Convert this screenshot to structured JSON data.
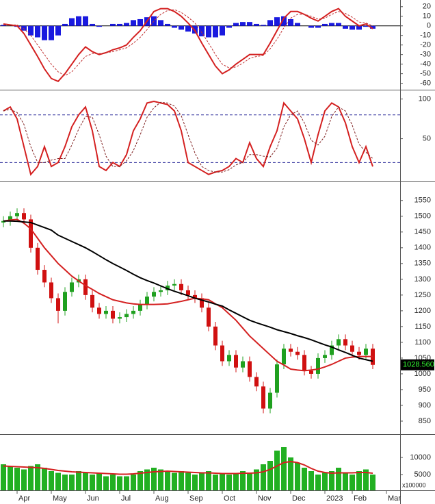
{
  "chart_data": [
    {
      "type": "macd",
      "ylim": [
        -66,
        27
      ],
      "yticks": [
        20,
        10,
        0,
        -10,
        -20,
        -30,
        -40,
        -50,
        -60
      ],
      "histogram": {
        "color": "#1a1adf",
        "values": [
          1,
          0,
          -1,
          -5,
          -10,
          -12,
          -15,
          -15,
          -10,
          2,
          8,
          10,
          10,
          2,
          -1,
          0,
          2,
          2,
          3,
          6,
          7,
          9,
          10,
          6,
          2,
          -2,
          -4,
          -6,
          -8,
          -11,
          -12,
          -12,
          -10,
          -2,
          3,
          4,
          4,
          2,
          1,
          6,
          9,
          10,
          7,
          3,
          0,
          -2,
          -2,
          2,
          3,
          3,
          -3,
          -4,
          -4,
          -1,
          -3
        ]
      },
      "series": [
        {
          "color": "#d42020",
          "values": [
            2,
            1,
            0,
            -8,
            -20,
            -32,
            -45,
            -55,
            -58,
            -50,
            -40,
            -30,
            -22,
            -27,
            -30,
            -28,
            -25,
            -23,
            -20,
            -12,
            -5,
            5,
            15,
            18,
            18,
            15,
            10,
            3,
            -5,
            -18,
            -30,
            -42,
            -50,
            -46,
            -40,
            -35,
            -30,
            -30,
            -30,
            -18,
            -5,
            8,
            15,
            15,
            12,
            8,
            5,
            10,
            15,
            18,
            10,
            5,
            0,
            2,
            -3
          ]
        },
        {
          "color": "#c03030",
          "dashed": true,
          "values": [
            1,
            1,
            1,
            -3,
            -10,
            -20,
            -30,
            -40,
            -48,
            -52,
            -48,
            -40,
            -32,
            -29,
            -29,
            -28,
            -27,
            -25,
            -23,
            -18,
            -12,
            -4,
            5,
            12,
            16,
            17,
            14,
            9,
            3,
            -7,
            -18,
            -30,
            -40,
            -44,
            -43,
            -39,
            -34,
            -32,
            -31,
            -24,
            -14,
            -2,
            8,
            12,
            12,
            10,
            7,
            8,
            12,
            15,
            13,
            9,
            4,
            3,
            0
          ]
        }
      ]
    },
    {
      "type": "line",
      "ylim": [
        -3,
        110
      ],
      "yticks": [
        100,
        50
      ],
      "ref_lines": [
        80,
        20
      ],
      "ref_color": "#2a2a9a",
      "series": [
        {
          "color": "#d42020",
          "values": [
            85,
            90,
            75,
            40,
            5,
            15,
            40,
            15,
            20,
            40,
            65,
            80,
            90,
            60,
            15,
            10,
            20,
            15,
            30,
            60,
            75,
            95,
            97,
            95,
            93,
            85,
            60,
            20,
            15,
            10,
            5,
            8,
            10,
            15,
            25,
            20,
            45,
            25,
            15,
            40,
            60,
            95,
            85,
            75,
            50,
            20,
            55,
            85,
            95,
            90,
            70,
            40,
            20,
            40,
            15
          ]
        },
        {
          "color": "#802020",
          "dashed": true,
          "values": [
            85,
            87,
            83,
            68,
            40,
            20,
            20,
            23,
            25,
            25,
            42,
            62,
            78,
            77,
            55,
            28,
            15,
            15,
            22,
            35,
            55,
            77,
            89,
            96,
            95,
            91,
            79,
            55,
            32,
            15,
            10,
            8,
            8,
            11,
            17,
            20,
            30,
            30,
            28,
            27,
            38,
            65,
            80,
            85,
            70,
            48,
            42,
            53,
            78,
            90,
            85,
            67,
            43,
            33,
            25
          ]
        }
      ]
    },
    {
      "type": "candlestick",
      "ylim": [
        813,
        1606
      ],
      "yticks": [
        850,
        900,
        950,
        1000,
        1050,
        1100,
        1150,
        1200,
        1250,
        1300,
        1350,
        1400,
        1450,
        1500,
        1550
      ],
      "up_color": "#1fa01f",
      "down_color": "#d01010",
      "open": [
        1480,
        1485,
        1500,
        1510,
        1490,
        1400,
        1330,
        1290,
        1240,
        1200,
        1260,
        1290,
        1300,
        1250,
        1210,
        1190,
        1200,
        1175,
        1180,
        1190,
        1200,
        1220,
        1245,
        1260,
        1265,
        1280,
        1285,
        1265,
        1250,
        1240,
        1210,
        1150,
        1090,
        1040,
        1060,
        1020,
        1040,
        990,
        960,
        890,
        940,
        1030,
        1080,
        1070,
        1060,
        1010,
        1000,
        1050,
        1060,
        1090,
        1110,
        1090,
        1070,
        1060,
        1080
      ],
      "high": [
        1500,
        1515,
        1525,
        1525,
        1505,
        1415,
        1345,
        1305,
        1255,
        1275,
        1305,
        1315,
        1315,
        1265,
        1225,
        1215,
        1215,
        1195,
        1205,
        1215,
        1235,
        1260,
        1275,
        1280,
        1295,
        1300,
        1300,
        1280,
        1265,
        1255,
        1225,
        1165,
        1105,
        1075,
        1075,
        1055,
        1055,
        1005,
        975,
        955,
        1045,
        1095,
        1095,
        1085,
        1075,
        1025,
        1065,
        1075,
        1105,
        1125,
        1125,
        1105,
        1085,
        1095,
        1095
      ],
      "low": [
        1465,
        1470,
        1485,
        1475,
        1385,
        1315,
        1275,
        1225,
        1160,
        1185,
        1245,
        1275,
        1235,
        1195,
        1175,
        1175,
        1160,
        1160,
        1165,
        1175,
        1185,
        1205,
        1230,
        1245,
        1250,
        1265,
        1250,
        1235,
        1225,
        1195,
        1135,
        1075,
        1025,
        1025,
        1005,
        1005,
        975,
        945,
        875,
        875,
        925,
        1015,
        1055,
        1045,
        995,
        985,
        985,
        1035,
        1045,
        1075,
        1075,
        1055,
        1045,
        1045,
        1015
      ],
      "close": [
        1485,
        1500,
        1510,
        1490,
        1400,
        1330,
        1290,
        1240,
        1200,
        1260,
        1290,
        1300,
        1250,
        1210,
        1190,
        1200,
        1175,
        1180,
        1190,
        1200,
        1220,
        1245,
        1260,
        1265,
        1280,
        1285,
        1265,
        1250,
        1240,
        1210,
        1150,
        1090,
        1040,
        1060,
        1020,
        1040,
        990,
        960,
        890,
        940,
        1030,
        1080,
        1070,
        1060,
        1010,
        1000,
        1050,
        1060,
        1090,
        1110,
        1090,
        1070,
        1060,
        1080,
        1028.56
      ],
      "last_price": {
        "value": 1028.56,
        "label": "1028.560"
      },
      "series": [
        {
          "color": "#d42020",
          "values": [
            1485,
            1488,
            1490,
            1478,
            1460,
            1430,
            1400,
            1375,
            1350,
            1330,
            1310,
            1295,
            1280,
            1268,
            1255,
            1245,
            1235,
            1230,
            1225,
            1222,
            1220,
            1220,
            1220,
            1221,
            1222,
            1226,
            1230,
            1235,
            1240,
            1238,
            1235,
            1222,
            1210,
            1190,
            1170,
            1145,
            1120,
            1100,
            1080,
            1060,
            1040,
            1028,
            1015,
            1012,
            1010,
            1012,
            1015,
            1022,
            1030,
            1040,
            1050,
            1053,
            1055,
            1055,
            1055
          ]
        },
        {
          "color": "#000000",
          "values": [
            1485,
            1485,
            1484,
            1482,
            1480,
            1472,
            1464,
            1456,
            1440,
            1430,
            1420,
            1410,
            1400,
            1388,
            1375,
            1362,
            1350,
            1339,
            1328,
            1316,
            1305,
            1296,
            1288,
            1279,
            1270,
            1262,
            1255,
            1248,
            1240,
            1234,
            1228,
            1221,
            1215,
            1203,
            1192,
            1181,
            1170,
            1162,
            1155,
            1148,
            1140,
            1134,
            1128,
            1121,
            1115,
            1108,
            1100,
            1092,
            1085,
            1076,
            1068,
            1059,
            1050,
            1045,
            1040
          ]
        }
      ]
    },
    {
      "type": "bar",
      "ylim": [
        400,
        16400
      ],
      "yticks": [
        5000,
        10000
      ],
      "unit_label": "x100000",
      "color": "#22b022",
      "categories": [
        null,
        null,
        "Apr",
        null,
        null,
        null,
        null,
        "May",
        null,
        null,
        null,
        null,
        "Jun",
        null,
        null,
        null,
        null,
        "Jul",
        null,
        null,
        null,
        null,
        "Aug",
        null,
        null,
        null,
        null,
        "Sep",
        null,
        null,
        null,
        null,
        "Oct",
        null,
        null,
        null,
        null,
        "Nov",
        null,
        null,
        null,
        null,
        "Dec",
        null,
        null,
        null,
        null,
        "2023",
        null,
        null,
        null,
        "Feb",
        null,
        null,
        null,
        null,
        "Mar"
      ],
      "values": [
        8000,
        7500,
        7000,
        6500,
        7500,
        8000,
        7000,
        6000,
        5500,
        5000,
        5000,
        6000,
        5500,
        5000,
        5500,
        4500,
        5000,
        4500,
        4500,
        5000,
        6000,
        6500,
        7000,
        6500,
        6000,
        5500,
        6000,
        5500,
        5000,
        5500,
        6000,
        5000,
        5500,
        5000,
        5500,
        6000,
        5500,
        6500,
        8000,
        9000,
        12000,
        13000,
        10000,
        8500,
        7000,
        6000,
        5000,
        5500,
        6000,
        7000,
        5500,
        5000,
        6000,
        6500,
        5000,
        null,
        null
      ],
      "series": [
        {
          "color": "#d42020",
          "values": [
            7500,
            7400,
            7300,
            7200,
            7100,
            7000,
            6800,
            6500,
            6200,
            6000,
            5800,
            5700,
            5600,
            5500,
            5400,
            5300,
            5200,
            5100,
            5100,
            5200,
            5400,
            5600,
            5800,
            5900,
            6000,
            5900,
            5800,
            5700,
            5600,
            5500,
            5500,
            5400,
            5300,
            5300,
            5300,
            5400,
            5400,
            5500,
            5800,
            6500,
            7500,
            8500,
            8800,
            8500,
            7800,
            6800,
            6000,
            5600,
            5400,
            5500,
            5500,
            5500,
            5600,
            5600,
            5400,
            null,
            null
          ]
        }
      ]
    }
  ]
}
